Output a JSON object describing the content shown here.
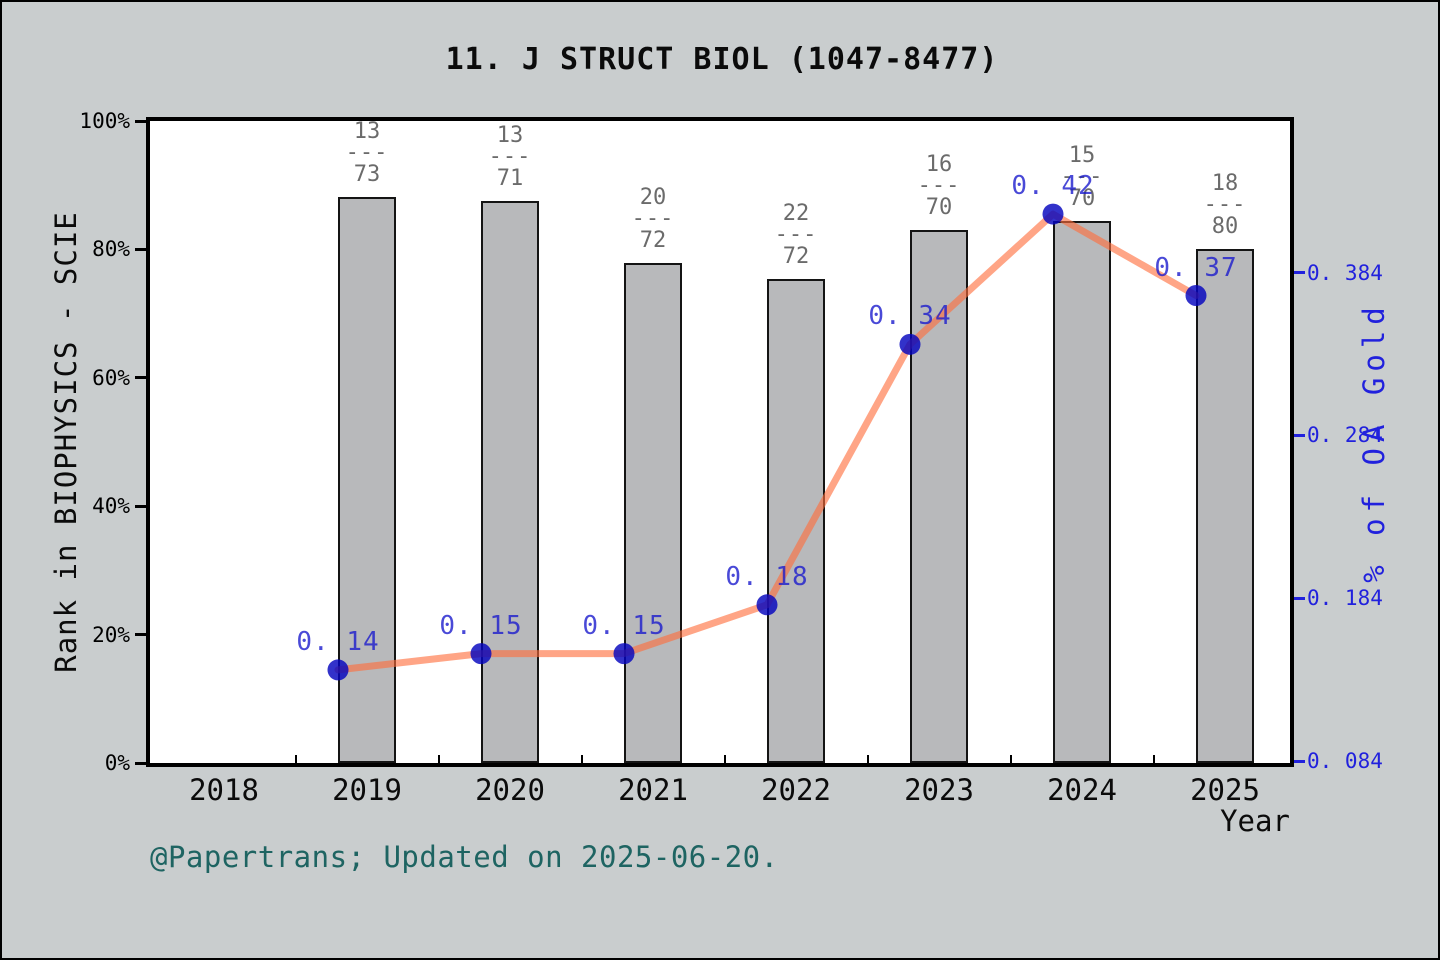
{
  "title": "11. J STRUCT BIOL (1047-8477)",
  "footer": "@Papertrans; Updated on 2025-06-20.",
  "colors": {
    "background": "#c9cdce",
    "plot_background": "#ffffff",
    "bar_fill": "#b8b9bb",
    "bar_edge": "#141414",
    "line": "rgba(255,110,60,0.62)",
    "marker": "rgba(5,5,190,0.82)",
    "point_label": "rgba(28,28,205,0.80)",
    "right_axis_text": "#2121dd",
    "fraction_text": "#6b6b6b",
    "footer_text": "#1e6462"
  },
  "chart_data": {
    "type": "bar+line (dual axis)",
    "title": "11. J STRUCT BIOL (1047-8477)",
    "xlabel": "Year",
    "x_ticks": [
      "2018",
      "2019",
      "2020",
      "2021",
      "2022",
      "2023",
      "2024",
      "2025"
    ],
    "x_tick_years": [
      2018,
      2019,
      2020,
      2021,
      2022,
      2023,
      2024,
      2025
    ],
    "left_axis": {
      "label": "Rank in BIOPHYSICS - SCIE",
      "tick_labels": [
        "0%",
        "20%",
        "40%",
        "60%",
        "80%",
        "100%"
      ],
      "tick_values": [
        0,
        20,
        40,
        60,
        80,
        100
      ],
      "lim": [
        0,
        100
      ]
    },
    "right_axis": {
      "label": "% of OA Gold",
      "tick_labels": [
        "0. 084",
        "0. 184",
        "0. 284",
        "0. 384"
      ],
      "tick_values": [
        0.084,
        0.184,
        0.284,
        0.384
      ],
      "lim": [
        0.0828,
        0.4772
      ]
    },
    "series": [
      {
        "name": "Rank in BIOPHYSICS - SCIE",
        "kind": "bar",
        "axis": "left",
        "years": [
          2019,
          2020,
          2021,
          2022,
          2023,
          2024,
          2025
        ],
        "values_pct": [
          88.2,
          87.5,
          77.9,
          75.4,
          83.0,
          84.4,
          80.1
        ],
        "rank_fractions": [
          {
            "num": "13",
            "den": "73"
          },
          {
            "num": "13",
            "den": "71"
          },
          {
            "num": "20",
            "den": "72"
          },
          {
            "num": "22",
            "den": "72"
          },
          {
            "num": "16",
            "den": "70"
          },
          {
            "num": "15",
            "den": "70"
          },
          {
            "num": "18",
            "den": "80"
          }
        ],
        "fraction_dash": "---"
      },
      {
        "name": "% of OA Gold",
        "kind": "line",
        "axis": "right",
        "years": [
          2019,
          2020,
          2021,
          2022,
          2023,
          2024,
          2025
        ],
        "values": [
          0.14,
          0.15,
          0.15,
          0.18,
          0.34,
          0.42,
          0.37
        ],
        "point_labels": [
          "0. 14",
          "0. 15",
          "0. 15",
          "0. 18",
          "0. 34",
          "0. 42",
          "0. 37"
        ]
      }
    ]
  }
}
